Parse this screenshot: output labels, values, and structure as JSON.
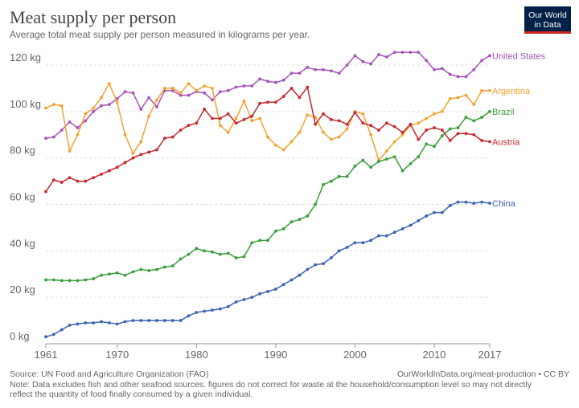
{
  "chart_data": {
    "type": "line",
    "title": "Meat supply per person",
    "subtitle": "Average total meat supply per person measured in kilograms per year.",
    "logo": [
      "Our World",
      "in Data"
    ],
    "source": "Source: UN Food and Agriculture Organization (FAO)",
    "url": "OurWorldInData.org/meat-production • CC BY",
    "note": [
      "Note: Data excludes fish and other seafood sources. figures do not correct for waste at the household/consumption level so may not directly",
      "reflect the quantity of food finally consumed by a given individual."
    ],
    "x": [
      1961,
      1962,
      1963,
      1964,
      1965,
      1966,
      1967,
      1968,
      1969,
      1970,
      1971,
      1972,
      1973,
      1974,
      1975,
      1976,
      1977,
      1978,
      1979,
      1980,
      1981,
      1982,
      1983,
      1984,
      1985,
      1986,
      1987,
      1988,
      1989,
      1990,
      1991,
      1992,
      1993,
      1994,
      1995,
      1996,
      1997,
      1998,
      1999,
      2000,
      2001,
      2002,
      2003,
      2004,
      2005,
      2006,
      2007,
      2008,
      2009,
      2010,
      2011,
      2012,
      2013,
      2014,
      2015,
      2016,
      2017
    ],
    "xlim": [
      1961,
      2017
    ],
    "xticks": [
      1961,
      1970,
      1980,
      1990,
      2000,
      2010,
      2017
    ],
    "ylim": [
      0,
      120
    ],
    "yticks": [
      {
        "value": 0,
        "label": "0 kg"
      },
      {
        "value": 20,
        "label": "20 kg"
      },
      {
        "value": 40,
        "label": "40 kg"
      },
      {
        "value": 60,
        "label": "60 kg"
      },
      {
        "value": 80,
        "label": "80 kg"
      },
      {
        "value": 100,
        "label": "100 kg"
      },
      {
        "value": 120,
        "label": "120 kg"
      }
    ],
    "grid": true,
    "series": [
      {
        "name": "United States",
        "color": "#a652ba",
        "values": [
          88.5,
          89,
          92,
          95.5,
          93,
          96,
          100,
          102.5,
          103,
          105.5,
          108.5,
          108,
          101,
          106,
          102,
          109,
          109,
          107,
          107,
          108.5,
          108,
          105,
          108.5,
          109,
          110.5,
          111,
          111,
          114,
          113,
          112.5,
          113.5,
          116.5,
          116.5,
          119,
          118,
          118,
          117.5,
          116.5,
          120,
          124,
          121.5,
          120.5,
          124.5,
          123.5,
          125.5,
          125.5,
          125.5,
          125.5,
          122,
          118,
          118.5,
          116,
          115,
          115,
          118,
          122,
          124
        ]
      },
      {
        "name": "Argentina",
        "color": "#f2a230",
        "values": [
          101.5,
          103,
          102.5,
          83,
          90,
          99,
          101.5,
          106,
          112,
          104,
          90,
          82,
          87,
          98,
          105,
          110,
          110,
          108,
          112,
          109,
          111,
          110,
          94,
          91,
          97,
          104.5,
          96,
          97,
          89,
          85.5,
          83.5,
          87,
          91,
          98.5,
          97.5,
          91,
          88,
          89,
          92.5,
          100,
          99,
          90,
          79,
          83,
          87,
          90,
          94,
          95,
          97,
          99,
          100,
          105.5,
          106,
          107,
          103,
          109,
          109
        ]
      },
      {
        "name": "Brazil",
        "color": "#3a9e3a",
        "values": [
          27.5,
          27.5,
          27.2,
          27.2,
          27.2,
          27.5,
          28,
          29.5,
          30,
          30.5,
          29.5,
          31,
          32,
          31.5,
          32,
          33,
          33.5,
          36.5,
          38.5,
          41,
          40,
          39.5,
          38.5,
          39,
          37,
          37.5,
          43.5,
          44.5,
          44.5,
          48.5,
          49.5,
          52.5,
          53.5,
          55,
          60,
          68.5,
          70,
          72,
          72,
          76.5,
          79,
          76,
          78.5,
          79.5,
          80.5,
          74.5,
          77.5,
          80.5,
          86,
          85,
          89.5,
          92.5,
          93,
          97.5,
          96,
          97.5,
          100
        ]
      },
      {
        "name": "Austria",
        "color": "#c3292f",
        "values": [
          65.5,
          70.5,
          69.5,
          71.5,
          70,
          70,
          71.5,
          73,
          74.5,
          76,
          78,
          80,
          81.5,
          82.5,
          83.5,
          88.5,
          89,
          92,
          94,
          95,
          101,
          97,
          97,
          99,
          95,
          96.5,
          98,
          103.5,
          104,
          104,
          106.5,
          110,
          106,
          110.5,
          94.5,
          99,
          96.5,
          96,
          94.5,
          99.5,
          95,
          94,
          92,
          95,
          93.5,
          91,
          94.5,
          88,
          92,
          93,
          92,
          87.5,
          90.5,
          90.5,
          90,
          87.5,
          87
        ]
      },
      {
        "name": "China",
        "color": "#3b63b5",
        "values": [
          3,
          4,
          6,
          8,
          8.5,
          9,
          9,
          9.5,
          9,
          8.5,
          9.5,
          10,
          10,
          10,
          10,
          10,
          10,
          10,
          12,
          13.5,
          14,
          14.5,
          15,
          16,
          18,
          19,
          20,
          21.5,
          22.5,
          23.5,
          25.5,
          27.5,
          29.5,
          32,
          34,
          34.5,
          37,
          40,
          41.5,
          43.5,
          43.5,
          44.5,
          46.5,
          46.5,
          48,
          49.5,
          51,
          53,
          55,
          56.5,
          56.5,
          59.5,
          61,
          61,
          60.5,
          61,
          60.5
        ]
      }
    ]
  }
}
